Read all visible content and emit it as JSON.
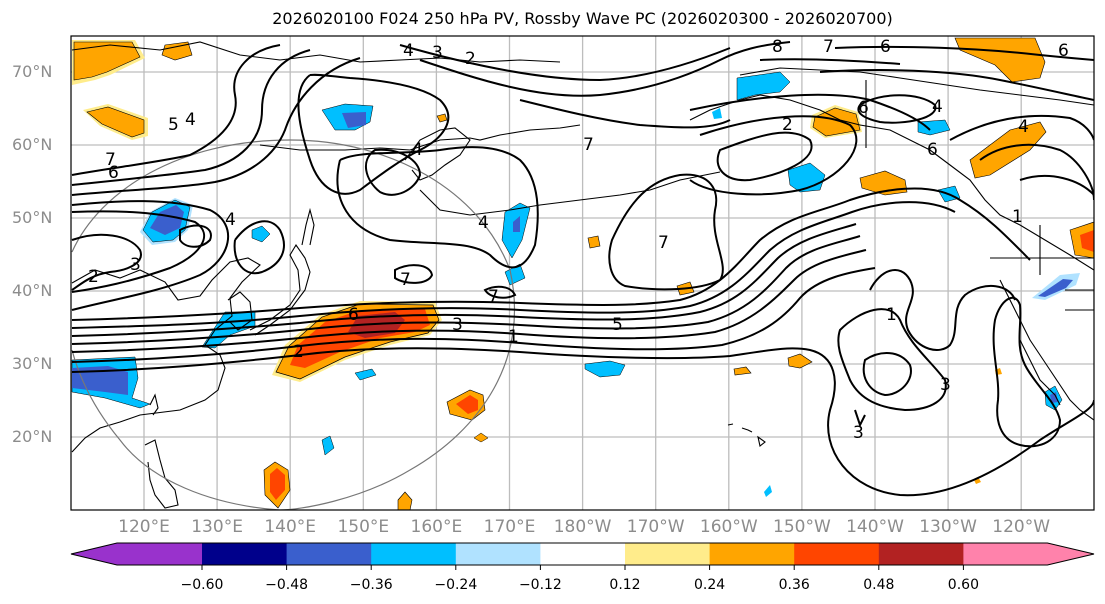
{
  "title": "2026020100 F024 250 hPa PV, Rossby Wave PC (2026020300 - 2026020700)",
  "map": {
    "projection": "PlateCarree",
    "lon_range": [
      "110°E",
      "100°W"
    ],
    "lat_range": [
      "10°N",
      "75°N"
    ],
    "lat_labels": [
      "70°N",
      "60°N",
      "50°N",
      "40°N",
      "30°N",
      "20°N"
    ],
    "lon_labels": [
      "120°E",
      "130°E",
      "140°E",
      "150°E",
      "160°E",
      "170°E",
      "180°W",
      "170°W",
      "160°W",
      "150°W",
      "140°W",
      "130°W",
      "120°W"
    ],
    "contour_variable": "250 hPa PV (PVU)",
    "contour_labels": [
      "1",
      "2",
      "3",
      "4",
      "5",
      "6",
      "7",
      "8"
    ],
    "fill_variable": "Rossby Wave PC",
    "gridlines": true
  },
  "colorbar": {
    "ticks": [
      "−0.60",
      "−0.48",
      "−0.36",
      "−0.24",
      "−0.12",
      "0.12",
      "0.24",
      "0.36",
      "0.48",
      "0.60"
    ],
    "colors": [
      "#9932cc",
      "#00008b",
      "#3a5fcd",
      "#00bfff",
      "#b0e2ff",
      "#ffffff",
      "#ffec8b",
      "#ffa500",
      "#ff4500",
      "#b22222",
      "#ff82ab"
    ],
    "extend": "both"
  },
  "chart_data": {
    "type": "heatmap",
    "title": "2026020100 F024 250 hPa PV, Rossby Wave PC (2026020300 - 2026020700)",
    "levels": [
      -0.6,
      -0.48,
      -0.36,
      -0.24,
      -0.12,
      0.12,
      0.24,
      0.36,
      0.48,
      0.6
    ],
    "xlabel": "",
    "ylabel": ""
  }
}
